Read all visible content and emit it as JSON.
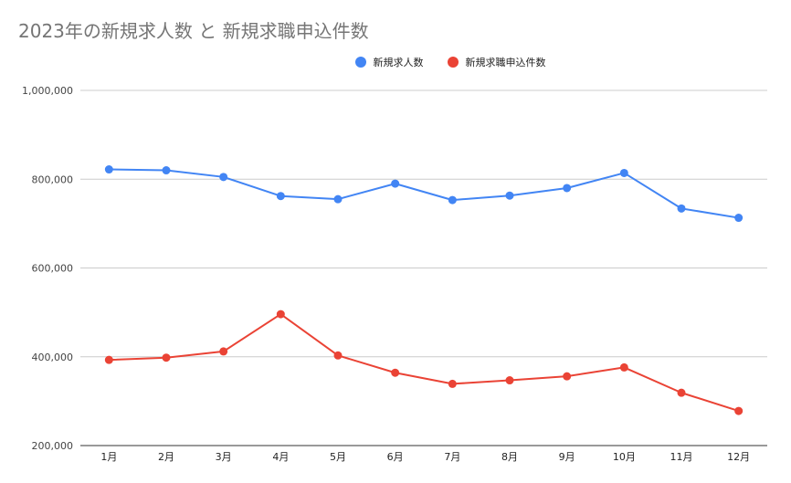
{
  "chart_data": {
    "type": "line",
    "title": "2023年の新規求人数 と 新規求職申込件数",
    "categories": [
      "1月",
      "2月",
      "3月",
      "4月",
      "5月",
      "6月",
      "7月",
      "8月",
      "9月",
      "10月",
      "11月",
      "12月"
    ],
    "series": [
      {
        "name": "新規求人数",
        "color": "#4285F4",
        "values": [
          822000,
          820000,
          805000,
          762000,
          755000,
          790000,
          753000,
          763000,
          780000,
          814000,
          734000,
          713000
        ]
      },
      {
        "name": "新規求職申込件数",
        "color": "#EA4335",
        "values": [
          393000,
          398000,
          412000,
          496000,
          403000,
          364000,
          339000,
          347000,
          356000,
          376000,
          319000,
          278000
        ]
      }
    ],
    "yticks": [
      "200,000",
      "400,000",
      "600,000",
      "800,000",
      "1,000,000"
    ],
    "ylim": [
      200000,
      1000000
    ],
    "grid": true,
    "legend_position": "top"
  }
}
